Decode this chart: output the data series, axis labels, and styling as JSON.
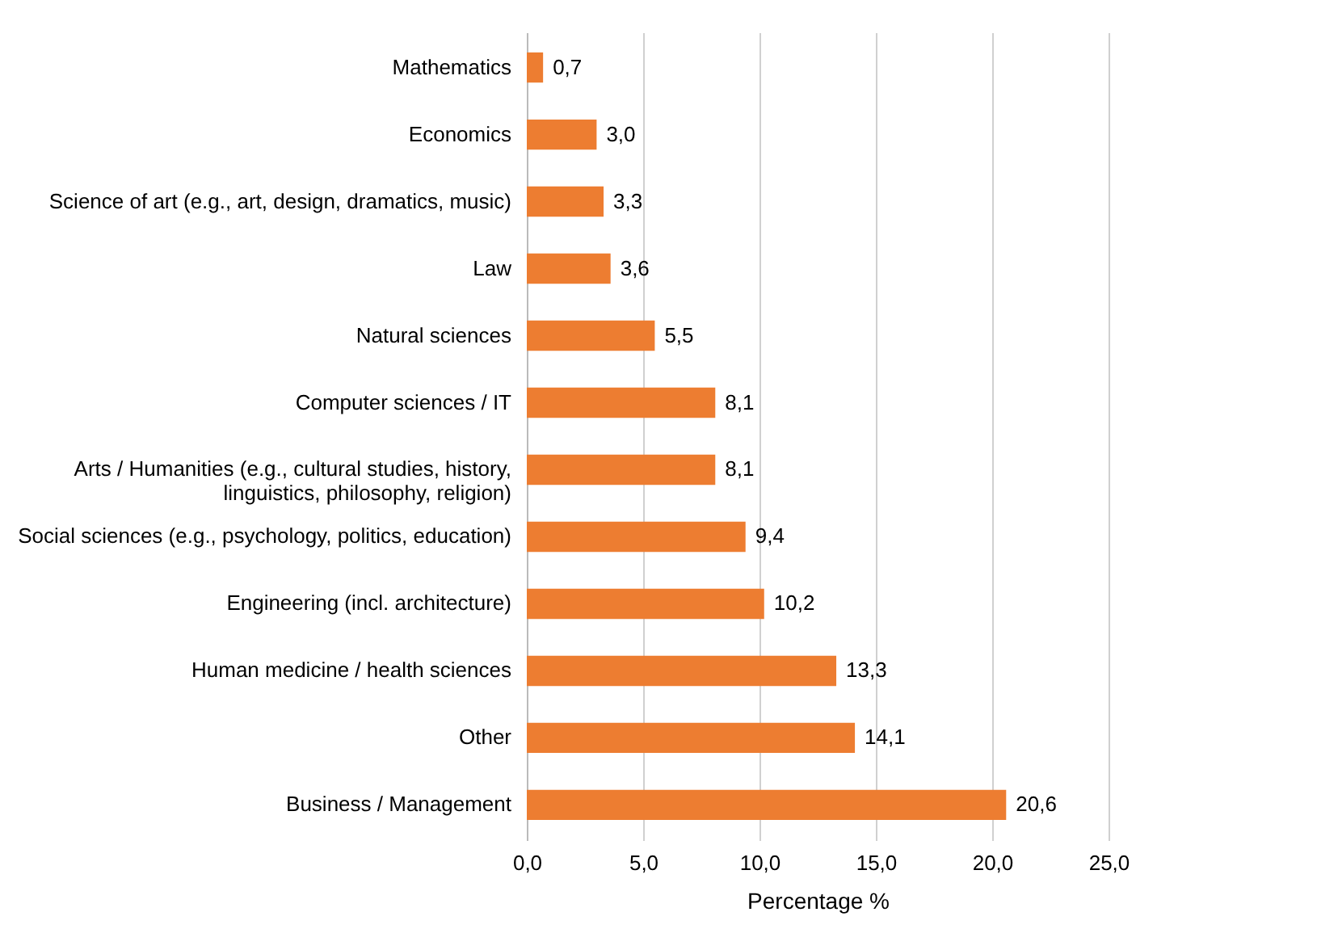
{
  "chart_data": {
    "type": "bar",
    "orientation": "horizontal",
    "xlabel": "Percentage %",
    "categories": [
      "Mathematics",
      "Economics",
      "Science of art (e.g., art, design, dramatics, music)",
      "Law",
      "Natural sciences",
      "Computer sciences / IT",
      "Arts / Humanities (e.g., cultural studies, history, linguistics, philosophy, religion)",
      "Social sciences (e.g., psychology, politics, education)",
      "Engineering (incl. architecture)",
      "Human medicine / health sciences",
      "Other",
      "Business / Management"
    ],
    "values": [
      0.7,
      3.0,
      3.3,
      3.6,
      5.5,
      8.1,
      8.1,
      9.4,
      10.2,
      13.3,
      14.1,
      20.6
    ],
    "value_labels": [
      "0,7",
      "3,0",
      "3,3",
      "3,6",
      "5,5",
      "8,1",
      "8,1",
      "9,4",
      "10,2",
      "13,3",
      "14,1",
      "20,6"
    ],
    "color": "#ed7d31",
    "xlim": [
      0,
      25
    ],
    "xticks": [
      {
        "value": 0,
        "label": "0,0"
      },
      {
        "value": 5,
        "label": "5,0"
      },
      {
        "value": 10,
        "label": "10,0"
      },
      {
        "value": 15,
        "label": "15,0"
      },
      {
        "value": 20,
        "label": "20,0"
      },
      {
        "value": 25,
        "label": "25,0"
      }
    ],
    "grid": "x"
  }
}
